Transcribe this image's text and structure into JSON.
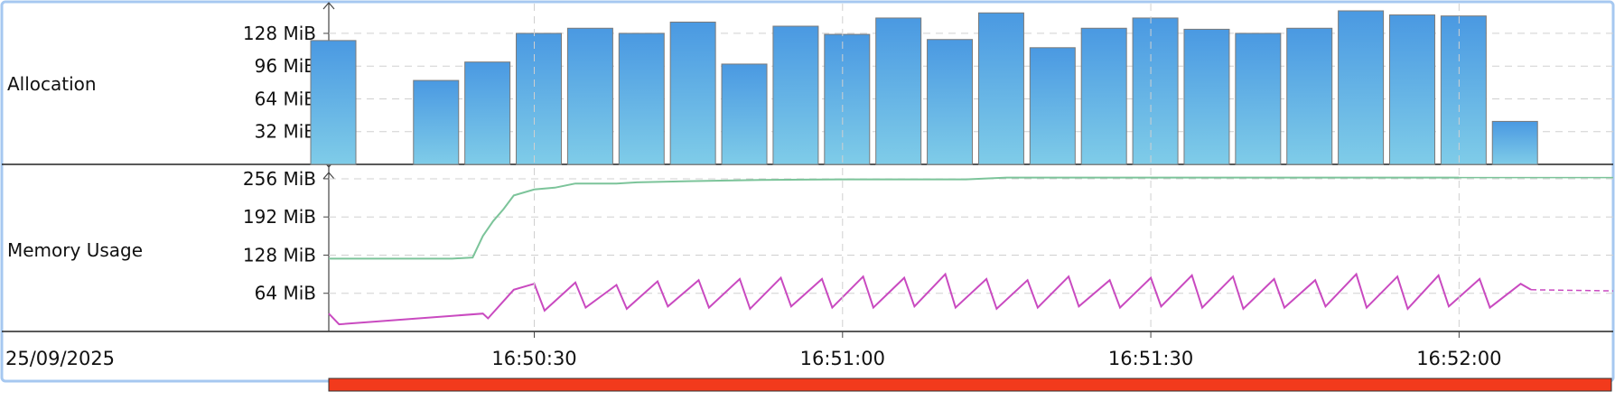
{
  "window": {
    "date_label": "25/09/2025"
  },
  "colors": {
    "frame": "#a6c8f0",
    "bar_top": "#4a99e2",
    "bar_bottom": "#7fcce8",
    "bar_stroke": "#7a7a7a",
    "heap_line": "#7cc49a",
    "used_line": "#c94ac0",
    "timeline_bar": "#f23a1c",
    "grid": "#d0d0d0"
  },
  "chart_data": [
    {
      "type": "bar",
      "label": "Allocation",
      "unit": "MiB",
      "ylim": [
        0,
        150
      ],
      "yticks": [
        32,
        64,
        96,
        128
      ],
      "ytick_labels": [
        "32 MiB",
        "64 MiB",
        "96 MiB",
        "128 MiB"
      ],
      "grid": true,
      "x": [
        "16:50:10",
        "16:50:20",
        "16:50:25",
        "16:50:30",
        "16:50:35",
        "16:50:40",
        "16:50:45",
        "16:50:50",
        "16:50:55",
        "16:51:00",
        "16:51:05",
        "16:51:10",
        "16:51:15",
        "16:51:20",
        "16:51:25",
        "16:51:30",
        "16:51:35",
        "16:51:40",
        "16:51:45",
        "16:51:50",
        "16:51:55",
        "16:52:00",
        "16:52:05",
        "16:52:10"
      ],
      "values": [
        121,
        82,
        100,
        128,
        133,
        128,
        139,
        98,
        135,
        127,
        143,
        122,
        148,
        114,
        133,
        143,
        132,
        128,
        133,
        150,
        146,
        145,
        42,
        0
      ]
    },
    {
      "type": "line",
      "label": "Memory Usage",
      "unit": "MiB",
      "ylim": [
        0,
        265
      ],
      "yticks": [
        64,
        128,
        192,
        256
      ],
      "ytick_labels": [
        "64 MiB",
        "128 MiB",
        "192 MiB",
        "256 MiB"
      ],
      "grid": true,
      "xticks": [
        "16:50:30",
        "16:51:00",
        "16:51:30",
        "16:52:00"
      ],
      "series": [
        {
          "color_key": "heap_line",
          "x": [
            "16:50:10",
            "16:50:22",
            "16:50:24",
            "16:50:25",
            "16:50:26",
            "16:50:27",
            "16:50:28",
            "16:50:30",
            "16:50:32",
            "16:50:34",
            "16:50:38",
            "16:50:40",
            "16:50:45",
            "16:50:52",
            "16:51:00",
            "16:51:12",
            "16:51:16",
            "16:51:30",
            "16:52:00",
            "16:52:15"
          ],
          "values": [
            122,
            122,
            124,
            160,
            185,
            205,
            228,
            238,
            241,
            248,
            248,
            250,
            252,
            254,
            255,
            255,
            258,
            258,
            258,
            258
          ]
        },
        {
          "color_key": "used_line",
          "x": [
            "16:50:10",
            "16:50:11",
            "16:50:25",
            "16:50:25.5",
            "16:50:28",
            "16:50:30",
            "16:50:31",
            "16:50:34",
            "16:50:35",
            "16:50:38",
            "16:50:39",
            "16:50:42",
            "16:50:43",
            "16:50:46",
            "16:50:47",
            "16:50:50",
            "16:50:51",
            "16:50:54",
            "16:50:55",
            "16:50:58",
            "16:50:59",
            "16:51:02",
            "16:51:03",
            "16:51:06",
            "16:51:07",
            "16:51:10",
            "16:51:11",
            "16:51:14",
            "16:51:15",
            "16:51:18",
            "16:51:19",
            "16:51:22",
            "16:51:23",
            "16:51:26",
            "16:51:27",
            "16:51:30",
            "16:51:31",
            "16:51:34",
            "16:51:35",
            "16:51:38",
            "16:51:39",
            "16:51:42",
            "16:51:43",
            "16:51:46",
            "16:51:47",
            "16:51:50",
            "16:51:51",
            "16:51:54",
            "16:51:55",
            "16:51:58",
            "16:51:59",
            "16:52:02",
            "16:52:03",
            "16:52:06",
            "16:52:07",
            "16:52:15"
          ],
          "values": [
            30,
            12,
            30,
            22,
            70,
            80,
            35,
            82,
            40,
            78,
            38,
            84,
            42,
            86,
            40,
            88,
            38,
            90,
            42,
            88,
            40,
            92,
            40,
            90,
            42,
            96,
            40,
            88,
            38,
            86,
            40,
            92,
            42,
            86,
            40,
            90,
            42,
            94,
            40,
            92,
            38,
            88,
            40,
            86,
            42,
            96,
            40,
            92,
            38,
            94,
            42,
            88,
            40,
            80,
            70,
            68
          ]
        }
      ]
    }
  ]
}
